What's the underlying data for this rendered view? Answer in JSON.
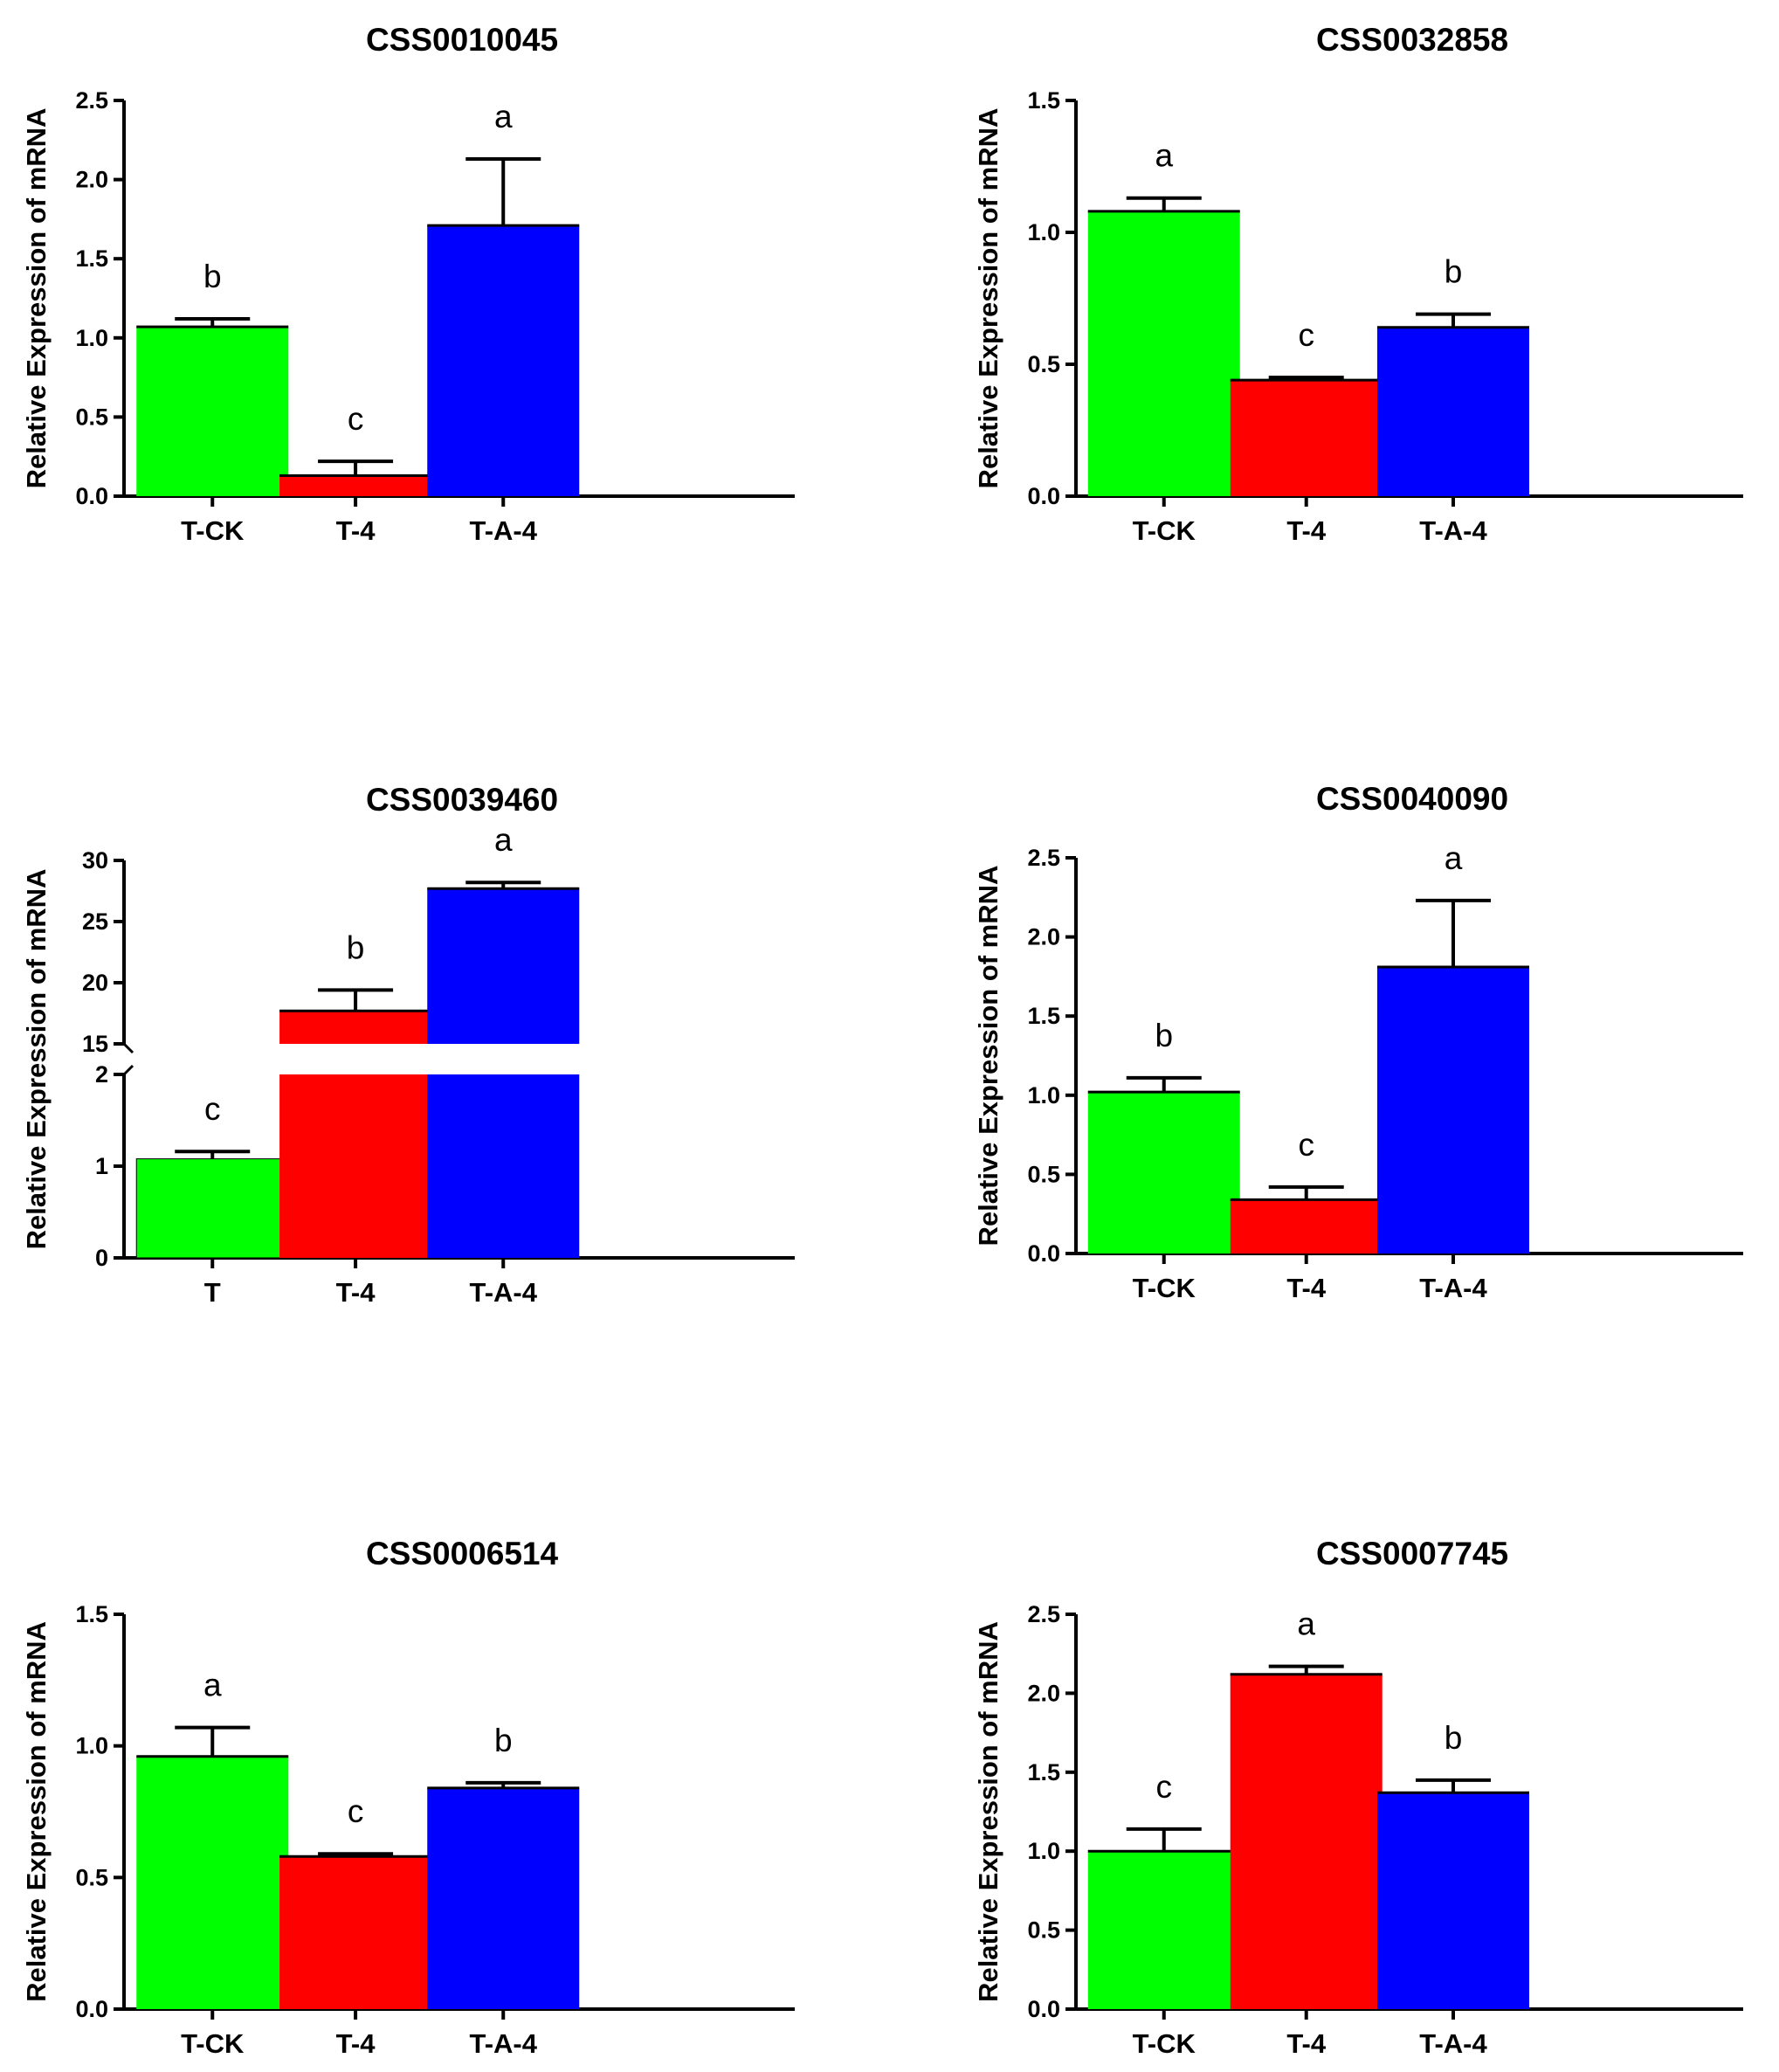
{
  "chart_data": [
    {
      "type": "bar",
      "title": "CSS0010045",
      "ylabel": "Relative Expression of mRNA",
      "xlabel": "",
      "categories": [
        "T-CK",
        "T-4",
        "T-A-4"
      ],
      "values": [
        1.07,
        0.13,
        1.71
      ],
      "errors": [
        0.05,
        0.09,
        0.42
      ],
      "letters": [
        "b",
        "c",
        "a"
      ],
      "colors": [
        "#00ff00",
        "#ff0000",
        "#0000ff"
      ],
      "ylim": [
        0,
        2.5
      ],
      "yticks": [
        0.0,
        0.5,
        1.0,
        1.5,
        2.0,
        2.5
      ],
      "tick_labels": [
        "0.0",
        "0.5",
        "1.0",
        "1.5",
        "2.0",
        "2.5"
      ]
    },
    {
      "type": "bar",
      "title": "CSS0032858",
      "ylabel": "Relative Expression of mRNA",
      "xlabel": "",
      "categories": [
        "T-CK",
        "T-4",
        "T-A-4"
      ],
      "values": [
        1.08,
        0.44,
        0.64
      ],
      "errors": [
        0.05,
        0.01,
        0.05
      ],
      "letters": [
        "a",
        "c",
        "b"
      ],
      "colors": [
        "#00ff00",
        "#ff0000",
        "#0000ff"
      ],
      "ylim": [
        0,
        1.5
      ],
      "yticks": [
        0.0,
        0.5,
        1.0,
        1.5
      ],
      "tick_labels": [
        "0.0",
        "0.5",
        "1.0",
        "1.5"
      ]
    },
    {
      "type": "bar",
      "title": "CSS0039460",
      "ylabel": "Relative Expression of mRNA",
      "xlabel": "",
      "categories": [
        "T",
        "T-4",
        "T-A-4"
      ],
      "values": [
        1.08,
        17.7,
        27.7
      ],
      "errors": [
        0.08,
        1.7,
        0.5
      ],
      "letters": [
        "c",
        "b",
        "a"
      ],
      "colors": [
        "#00ff00",
        "#ff0000",
        "#0000ff"
      ],
      "broken_axis": true,
      "ylim_lower": [
        0,
        2
      ],
      "ylim_upper": [
        15,
        30
      ],
      "yticks_lower": [
        0,
        1,
        2
      ],
      "tick_labels_lower": [
        "0",
        "1",
        "2"
      ],
      "yticks_upper": [
        15,
        20,
        25,
        30
      ],
      "tick_labels_upper": [
        "15",
        "20",
        "25",
        "30"
      ]
    },
    {
      "type": "bar",
      "title": "CSS0040090",
      "ylabel": "Relative Expression of mRNA",
      "xlabel": "",
      "categories": [
        "T-CK",
        "T-4",
        "T-A-4"
      ],
      "values": [
        1.02,
        0.34,
        1.81
      ],
      "errors": [
        0.09,
        0.08,
        0.42
      ],
      "letters": [
        "b",
        "c",
        "a"
      ],
      "colors": [
        "#00ff00",
        "#ff0000",
        "#0000ff"
      ],
      "ylim": [
        0,
        2.5
      ],
      "yticks": [
        0.0,
        0.5,
        1.0,
        1.5,
        2.0,
        2.5
      ],
      "tick_labels": [
        "0.0",
        "0.5",
        "1.0",
        "1.5",
        "2.0",
        "2.5"
      ]
    },
    {
      "type": "bar",
      "title": "CSS0006514",
      "ylabel": "Relative Expression of mRNA",
      "xlabel": "",
      "categories": [
        "T-CK",
        "T-4",
        "T-A-4"
      ],
      "values": [
        0.96,
        0.58,
        0.84
      ],
      "errors": [
        0.11,
        0.01,
        0.02
      ],
      "letters": [
        "a",
        "c",
        "b"
      ],
      "colors": [
        "#00ff00",
        "#ff0000",
        "#0000ff"
      ],
      "ylim": [
        0,
        1.5
      ],
      "yticks": [
        0.0,
        0.5,
        1.0,
        1.5
      ],
      "tick_labels": [
        "0.0",
        "0.5",
        "1.0",
        "1.5"
      ]
    },
    {
      "type": "bar",
      "title": "CSS0007745",
      "ylabel": "Relative Expression of mRNA",
      "xlabel": "",
      "categories": [
        "T-CK",
        "T-4",
        "T-A-4"
      ],
      "values": [
        1.0,
        2.12,
        1.37
      ],
      "errors": [
        0.14,
        0.05,
        0.08
      ],
      "letters": [
        "c",
        "a",
        "b"
      ],
      "colors": [
        "#00ff00",
        "#ff0000",
        "#0000ff"
      ],
      "ylim": [
        0,
        2.5
      ],
      "yticks": [
        0.0,
        0.5,
        1.0,
        1.5,
        2.0,
        2.5
      ],
      "tick_labels": [
        "0.0",
        "0.5",
        "1.0",
        "1.5",
        "2.0",
        "2.5"
      ]
    }
  ]
}
